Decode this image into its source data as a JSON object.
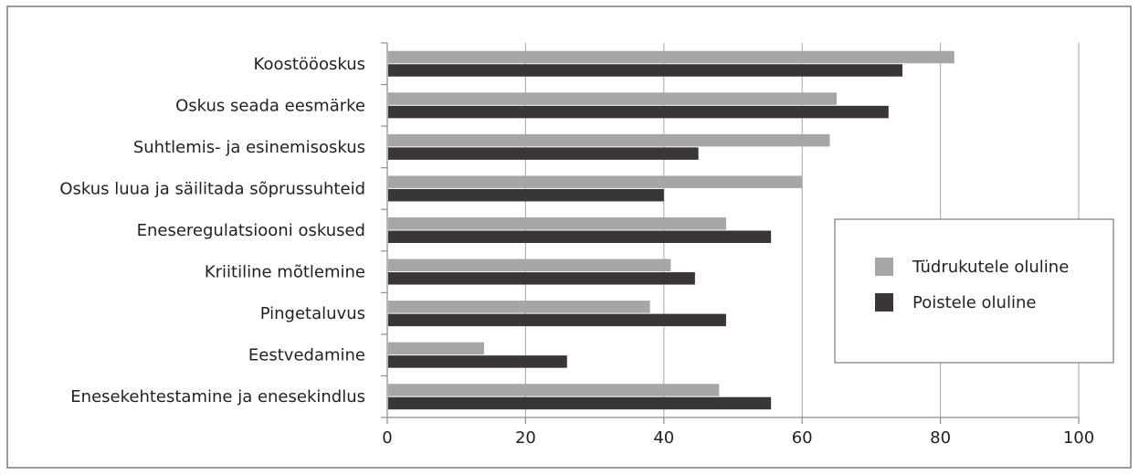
{
  "chart_data": {
    "type": "bar",
    "orientation": "horizontal",
    "categories": [
      "Koostööoskus",
      "Oskus seada eesmärke",
      "Suhtlemis- ja esinemisoskus",
      "Oskus luua ja säilitada sõprussuhteid",
      "Eneseregulatsiooni oskused",
      "Kriitiline mõtlemine",
      "Pingetaluvus",
      "Eestvedamine",
      "Enesekehtestamine ja enesekindlus"
    ],
    "series": [
      {
        "name": "Tüdrukutele oluline",
        "color": "#a6a6a6",
        "values": [
          82,
          65,
          64,
          60,
          49,
          41,
          38,
          14,
          48
        ]
      },
      {
        "name": "Poistele oluline",
        "color": "#3a3536",
        "values": [
          74.5,
          72.5,
          45,
          40,
          55.5,
          44.5,
          49,
          26,
          55.5
        ]
      }
    ],
    "x_ticks": [
      "0",
      "20",
      "40",
      "60",
      "80",
      "100"
    ],
    "xlim": [
      0,
      100
    ],
    "grid": true,
    "legend_position": "right"
  }
}
